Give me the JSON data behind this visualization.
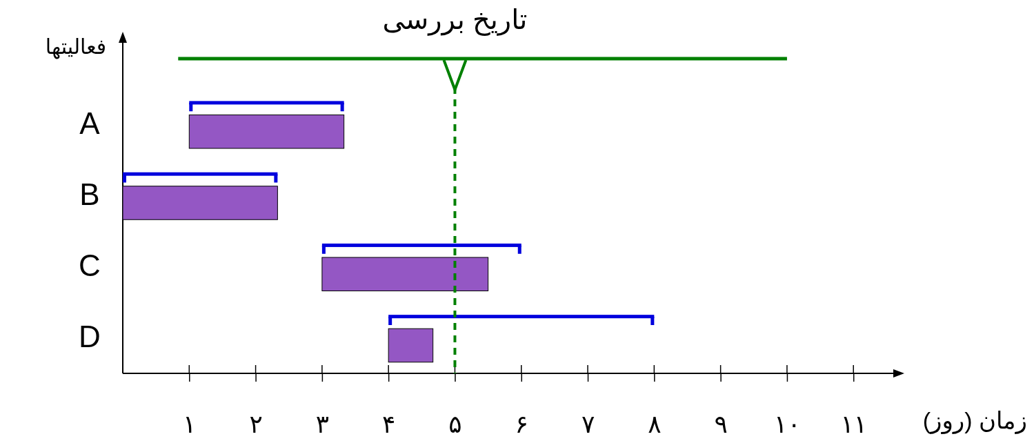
{
  "chart_data": {
    "type": "bar",
    "orientation": "horizontal",
    "xlabel": "زمان (روز)",
    "ylabel": "فعالیتها",
    "categories": [
      "A",
      "B",
      "C",
      "D"
    ],
    "series": [
      {
        "color": "#0000dd",
        "values": [
          2.33,
          2.33,
          3,
          4
        ],
        "base": [
          1,
          0,
          3,
          4
        ]
      },
      {
        "color": "#9457c4",
        "values": [
          2.33,
          2.33,
          2.5,
          0.67
        ],
        "base": [
          1,
          0,
          3,
          4
        ]
      }
    ],
    "xlim": [
      0,
      11.6
    ],
    "xticks": [
      {
        "value": 1,
        "label": "۱"
      },
      {
        "value": 2,
        "label": "۲"
      },
      {
        "value": 3,
        "label": "۳"
      },
      {
        "value": 4,
        "label": "۴"
      },
      {
        "value": 5,
        "label": "۵"
      },
      {
        "value": 6,
        "label": "۶"
      },
      {
        "value": 7,
        "label": "۷"
      },
      {
        "value": 8,
        "label": "۸"
      },
      {
        "value": 9,
        "label": "۹"
      },
      {
        "value": 10,
        "label": "۱۰"
      },
      {
        "value": 11,
        "label": "۱۱"
      }
    ],
    "ref_lines": [
      {
        "axis": "x",
        "value": 5,
        "label": "تاریخ بررسی",
        "color": "#008000",
        "line_style": "dashed"
      }
    ]
  }
}
